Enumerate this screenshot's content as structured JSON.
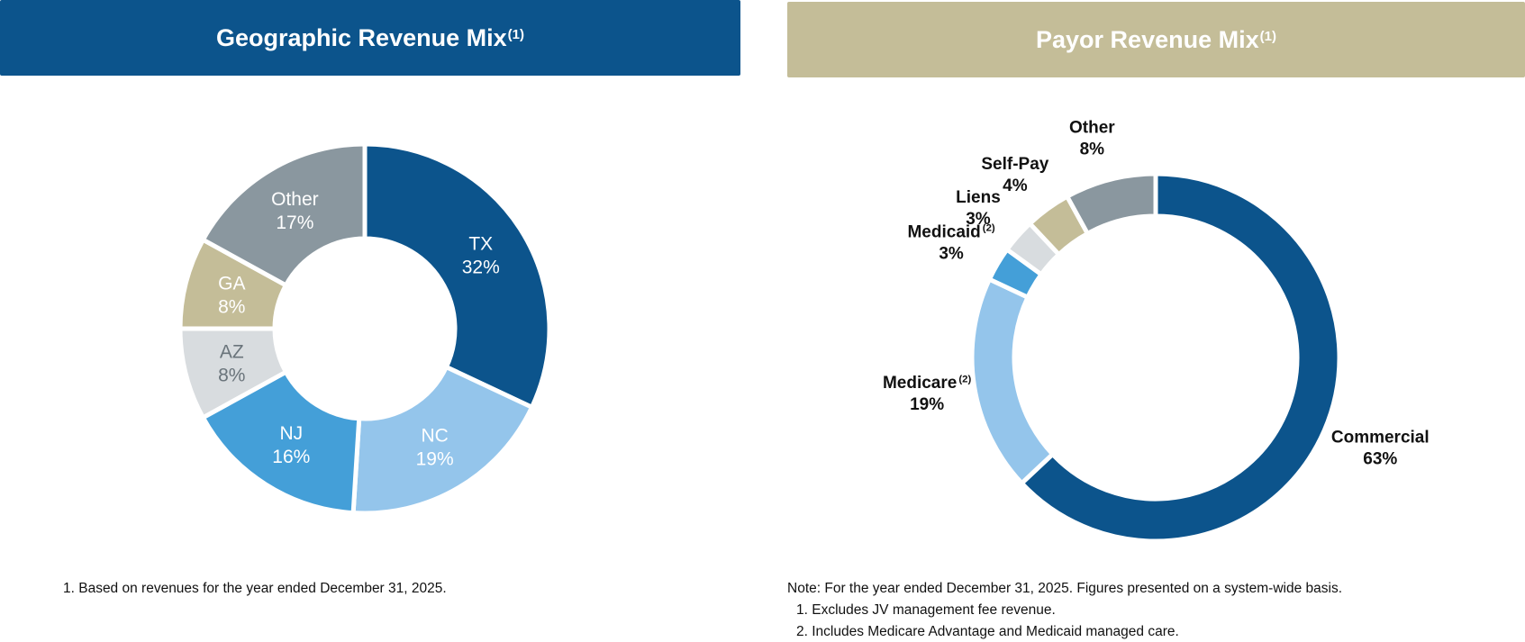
{
  "colors": {
    "header_left": "#0c548c",
    "header_right": "#c4bd98",
    "gap": "#ffffff"
  },
  "headers": {
    "left": {
      "title": "Geographic Revenue Mix",
      "sup": "(1)"
    },
    "right": {
      "title": "Payor Revenue Mix",
      "sup": "(1)"
    }
  },
  "chart_data": [
    {
      "type": "pie",
      "title": "Geographic Revenue Mix(1)",
      "donut": true,
      "labels_inside": true,
      "slices": [
        {
          "label": "TX",
          "value": 32,
          "display": "32%",
          "color": "#0c548c",
          "text_color": "#ffffff"
        },
        {
          "label": "NC",
          "value": 19,
          "display": "19%",
          "color": "#94c5eb",
          "text_color": "#ffffff"
        },
        {
          "label": "NJ",
          "value": 16,
          "display": "16%",
          "color": "#449fd8",
          "text_color": "#ffffff"
        },
        {
          "label": "AZ",
          "value": 8,
          "display": "8%",
          "color": "#d8dcdf",
          "text_color": "#6a747b"
        },
        {
          "label": "GA",
          "value": 8,
          "display": "8%",
          "color": "#c4bd98",
          "text_color": "#ffffff"
        },
        {
          "label": "Other",
          "value": 17,
          "display": "17%",
          "color": "#8a979f",
          "text_color": "#ffffff"
        }
      ]
    },
    {
      "type": "pie",
      "title": "Payor Revenue Mix(1)",
      "donut": true,
      "labels_inside": false,
      "slices": [
        {
          "label": "Commercial",
          "sup": "",
          "value": 63,
          "display": "63%",
          "color": "#0c548c"
        },
        {
          "label": "Medicare",
          "sup": "(2)",
          "value": 19,
          "display": "19%",
          "color": "#94c5eb"
        },
        {
          "label": "Medicaid",
          "sup": "(2)",
          "value": 3,
          "display": "3%",
          "color": "#449fd8"
        },
        {
          "label": "Liens",
          "sup": "",
          "value": 3,
          "display": "3%",
          "color": "#d8dcdf"
        },
        {
          "label": "Self-Pay",
          "sup": "",
          "value": 4,
          "display": "4%",
          "color": "#c4bd98"
        },
        {
          "label": "Other",
          "sup": "",
          "value": 8,
          "display": "8%",
          "color": "#8a979f"
        }
      ]
    }
  ],
  "footnotes": {
    "left": [
      "1.  Based on revenues for the year ended December 31, 2025."
    ],
    "right_note": "Note: For the year ended December 31, 2025. Figures presented on a system-wide basis.",
    "right": [
      "1.  Excludes JV management fee revenue.",
      "2.  Includes Medicare Advantage and Medicaid managed care."
    ]
  }
}
